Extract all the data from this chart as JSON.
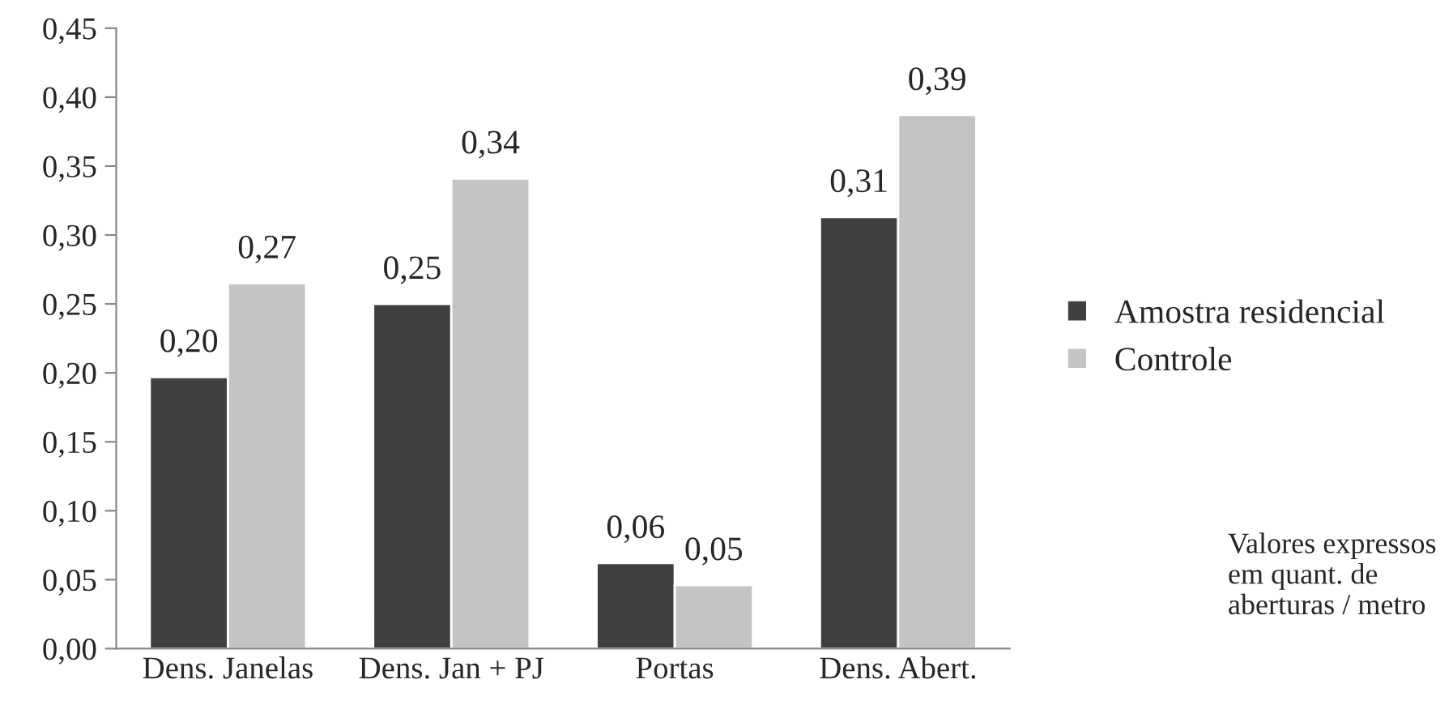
{
  "chart_data": {
    "type": "bar",
    "categories": [
      "Dens. Janelas",
      "Dens. Jan + PJ",
      "Portas",
      "Dens. Abert."
    ],
    "series": [
      {
        "name": "Amostra residencial",
        "color": "#404040",
        "values": [
          0.197,
          0.25,
          0.062,
          0.313
        ],
        "value_labels": [
          "0,20",
          "0,25",
          "0,06",
          "0,31"
        ]
      },
      {
        "name": "Controle",
        "color": "#c4c4c4",
        "values": [
          0.265,
          0.341,
          0.046,
          0.387
        ],
        "value_labels": [
          "0,27",
          "0,34",
          "0,05",
          "0,39"
        ]
      }
    ],
    "ylim": [
      0,
      0.45
    ],
    "yticks": [
      {
        "value": 0,
        "label": "0,00"
      },
      {
        "value": 0.05,
        "label": "0,05"
      },
      {
        "value": 0.1,
        "label": "0,10"
      },
      {
        "value": 0.15,
        "label": "0,15"
      },
      {
        "value": 0.2,
        "label": "0,20"
      },
      {
        "value": 0.25,
        "label": "0,25"
      },
      {
        "value": 0.3,
        "label": "0,30"
      },
      {
        "value": 0.35,
        "label": "0,35"
      },
      {
        "value": 0.4,
        "label": "0,40"
      },
      {
        "value": 0.45,
        "label": "0,45"
      }
    ],
    "grid": false,
    "legend": "right",
    "annotations": [
      "Valores expressos\nem quant. de\naberturas / metro"
    ]
  }
}
